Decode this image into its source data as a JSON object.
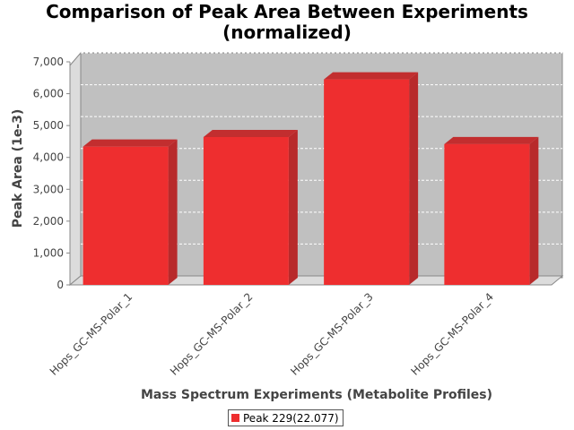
{
  "chart_data": {
    "type": "bar",
    "title_lines": [
      "Comparison of Peak Area Between Experiments",
      "(normalized)"
    ],
    "xlabel": "Mass Spectrum Experiments (Metabolite Profiles)",
    "ylabel": "Peak Area (1e-3)",
    "categories": [
      "Hops_GC-MS-Polar_1",
      "Hops_GC-MS-Polar_2",
      "Hops_GC-MS-Polar_3",
      "Hops_GC-MS-Polar_4"
    ],
    "series": [
      {
        "name": "Peak 229(22.077)",
        "values": [
          4620,
          4920,
          6730,
          4700
        ],
        "color": "#ee2e2f"
      }
    ],
    "ylim": [
      0,
      7000
    ],
    "y_ticks": [
      0,
      1000,
      2000,
      3000,
      4000,
      5000,
      6000,
      7000
    ],
    "y_tick_labels": [
      "0",
      "1,000",
      "2,000",
      "3,000",
      "4,000",
      "5,000",
      "6,000",
      "7,000"
    ],
    "grid": true,
    "legend_position": "bottom",
    "colors": {
      "bar": "#ee2e2f",
      "plot_background": "#c0c0c0",
      "grid": "#ffffff"
    }
  }
}
